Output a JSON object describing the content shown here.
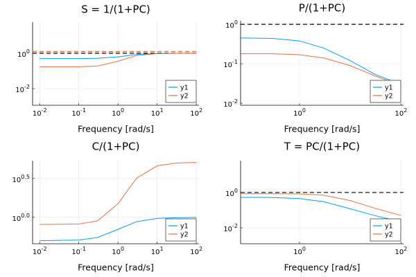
{
  "chart_data": [
    {
      "type": "line",
      "title": "S = 1/(1+PC)",
      "xlabel": "Frequency [rad/s]",
      "xscale": "log",
      "yscale": "log",
      "grid": true,
      "legend": "bottom-right",
      "x": [
        0.01,
        0.1,
        0.3,
        1,
        3,
        10,
        30,
        100
      ],
      "series": [
        {
          "name": "y1",
          "color": "#009af9",
          "values": [
            0.5,
            0.5,
            0.52,
            0.62,
            0.85,
            0.97,
            0.99,
            1.0
          ]
        },
        {
          "name": "y2",
          "color": "#e26f46",
          "values": [
            0.17,
            0.17,
            0.19,
            0.35,
            0.75,
            0.95,
            0.99,
            1.0
          ]
        }
      ],
      "hlines": [
        {
          "value": 1,
          "color": "#000000"
        },
        {
          "value": 1.25,
          "color": "#e26f46"
        }
      ],
      "xlim": [
        0.0066,
        117
      ],
      "ylim": [
        0.00115,
        57
      ],
      "xticks": [
        {
          "value": 0.01,
          "label": "10^-2"
        },
        {
          "value": 0.1,
          "label": "10^-1"
        },
        {
          "value": 1,
          "label": "10^0"
        },
        {
          "value": 10,
          "label": "10^1"
        },
        {
          "value": 100,
          "label": "10^2"
        }
      ],
      "yticks": [
        {
          "value": 0.01,
          "label": "10^-2"
        },
        {
          "value": 1,
          "label": "10^0"
        }
      ]
    },
    {
      "type": "line",
      "title": "P/(1+PC)",
      "xlabel": "Frequency [rad/s]",
      "xscale": "log",
      "yscale": "log",
      "grid": true,
      "legend": "bottom-right",
      "x": [
        0.07,
        0.3,
        1,
        3,
        10,
        30,
        100
      ],
      "series": [
        {
          "name": "y1",
          "color": "#009af9",
          "values": [
            0.45,
            0.44,
            0.38,
            0.25,
            0.12,
            0.055,
            0.03
          ]
        },
        {
          "name": "y2",
          "color": "#e26f46",
          "values": [
            0.18,
            0.18,
            0.17,
            0.14,
            0.09,
            0.05,
            0.028
          ]
        }
      ],
      "hlines": [
        {
          "value": 1,
          "color": "#000000"
        }
      ],
      "xlim": [
        0.069,
        112
      ],
      "ylim": [
        0.0089,
        1.23
      ],
      "xticks": [
        {
          "value": 1,
          "label": "10^0"
        },
        {
          "value": 100,
          "label": "10^2"
        }
      ],
      "yticks": [
        {
          "value": 0.01,
          "label": "10^-2"
        },
        {
          "value": 0.1,
          "label": "10^-1"
        },
        {
          "value": 1,
          "label": "10^0"
        }
      ]
    },
    {
      "type": "line",
      "title": "C/(1+PC)",
      "xlabel": "Frequency [rad/s]",
      "xscale": "log",
      "yscale": "log",
      "grid": true,
      "legend": "bottom-right",
      "x": [
        0.01,
        0.1,
        0.3,
        1,
        3,
        10,
        30,
        100
      ],
      "series": [
        {
          "name": "y1",
          "color": "#009af9",
          "values": [
            0.5,
            0.51,
            0.55,
            0.7,
            0.88,
            0.97,
            0.99,
            1.0
          ]
        },
        {
          "name": "y2",
          "color": "#e26f46",
          "values": [
            0.81,
            0.82,
            0.9,
            1.5,
            3.2,
            4.6,
            5.0,
            5.1
          ]
        }
      ],
      "hlines": [],
      "xlim": [
        0.0066,
        117
      ],
      "ylim": [
        0.457,
        5.37
      ],
      "xticks": [
        {
          "value": 0.01,
          "label": "10^-2"
        },
        {
          "value": 0.1,
          "label": "10^-1"
        },
        {
          "value": 1,
          "label": "10^0"
        },
        {
          "value": 10,
          "label": "10^1"
        },
        {
          "value": 100,
          "label": "10^2"
        }
      ],
      "yticks": [
        {
          "value": 1,
          "label": "10^0.0"
        },
        {
          "value": 3.1623,
          "label": "10^0.5"
        }
      ]
    },
    {
      "type": "line",
      "title": "T = PC/(1+PC)",
      "xlabel": "Frequency [rad/s]",
      "xscale": "log",
      "yscale": "log",
      "grid": true,
      "legend": "bottom-right",
      "x": [
        0.07,
        0.3,
        1,
        3,
        10,
        30,
        100
      ],
      "series": [
        {
          "name": "y1",
          "color": "#009af9",
          "values": [
            0.53,
            0.52,
            0.45,
            0.3,
            0.12,
            0.05,
            0.022
          ]
        },
        {
          "name": "y2",
          "color": "#e26f46",
          "values": [
            0.85,
            0.85,
            0.83,
            0.7,
            0.35,
            0.13,
            0.05
          ]
        }
      ],
      "hlines": [
        {
          "value": 1,
          "color": "#000000"
        }
      ],
      "xlim": [
        0.069,
        112
      ],
      "ylim": [
        0.00126,
        63
      ],
      "xticks": [
        {
          "value": 1,
          "label": "10^0"
        },
        {
          "value": 100,
          "label": "10^2"
        }
      ],
      "yticks": [
        {
          "value": 0.01,
          "label": "10^-2"
        },
        {
          "value": 1,
          "label": "10^0"
        }
      ]
    }
  ]
}
